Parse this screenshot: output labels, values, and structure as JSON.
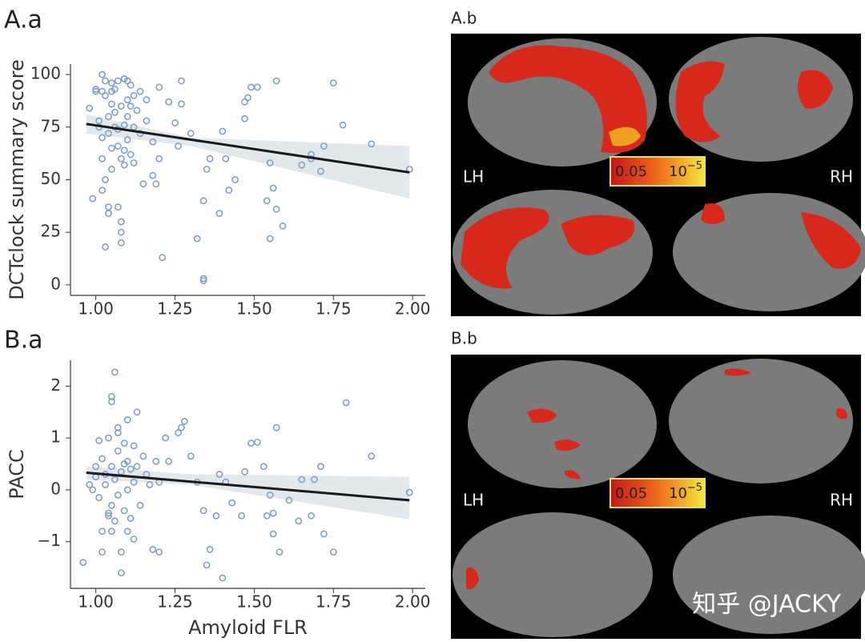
{
  "chart_data": [
    {
      "type": "scatter",
      "panel_label": "A.a",
      "ylabel": "DCTclock summary score",
      "marker_color": "#7f9fc8",
      "fit_color": "#1a1a1a",
      "ci_color": "#dde5ea",
      "x": [
        0.98,
        0.99,
        1.0,
        1.0,
        1.01,
        1.01,
        1.02,
        1.02,
        1.02,
        1.02,
        1.02,
        1.03,
        1.03,
        1.03,
        1.03,
        1.04,
        1.04,
        1.04,
        1.04,
        1.05,
        1.05,
        1.05,
        1.05,
        1.05,
        1.06,
        1.06,
        1.06,
        1.07,
        1.07,
        1.07,
        1.07,
        1.08,
        1.08,
        1.08,
        1.08,
        1.08,
        1.09,
        1.09,
        1.09,
        1.09,
        1.1,
        1.1,
        1.1,
        1.1,
        1.11,
        1.11,
        1.11,
        1.12,
        1.12,
        1.12,
        1.13,
        1.14,
        1.14,
        1.15,
        1.16,
        1.16,
        1.18,
        1.18,
        1.19,
        1.2,
        1.2,
        1.21,
        1.23,
        1.25,
        1.26,
        1.27,
        1.27,
        1.3,
        1.32,
        1.34,
        1.34,
        1.34,
        1.35,
        1.36,
        1.39,
        1.4,
        1.41,
        1.42,
        1.44,
        1.47,
        1.47,
        1.48,
        1.49,
        1.51,
        1.54,
        1.55,
        1.55,
        1.56,
        1.57,
        1.57,
        1.59,
        1.65,
        1.68,
        1.68,
        1.71,
        1.72,
        1.75,
        1.78,
        1.87,
        1.99
      ],
      "values": [
        84,
        41,
        93,
        92,
        78,
        75,
        100,
        92,
        70,
        60,
        45,
        18,
        97,
        90,
        50,
        37,
        34,
        80,
        72,
        96,
        92,
        86,
        65,
        55,
        75,
        82,
        93,
        97,
        74,
        66,
        37,
        25,
        20,
        30,
        85,
        60,
        98,
        76,
        64,
        57,
        97,
        88,
        80,
        69,
        95,
        85,
        62,
        90,
        75,
        58,
        83,
        92,
        72,
        48,
        88,
        78,
        68,
        52,
        48,
        60,
        94,
        13,
        87,
        77,
        66,
        97,
        86,
        72,
        22,
        3,
        2,
        40,
        55,
        60,
        34,
        73,
        60,
        45,
        50,
        79,
        87,
        89,
        94,
        94,
        40,
        22,
        58,
        46,
        97,
        36,
        28,
        57,
        60,
        62,
        54,
        66,
        96,
        76,
        67,
        55
      ],
      "fit": {
        "x": [
          0.97,
          1.99
        ],
        "values": [
          76.5,
          53.5
        ]
      },
      "ci": {
        "x": [
          0.97,
          1.3,
          1.99
        ],
        "lower": [
          72,
          66,
          41
        ],
        "upper": [
          81,
          70,
          66
        ]
      },
      "xlim": [
        0.92,
        2.04
      ],
      "ylim": [
        -5,
        105
      ],
      "xticks": [
        {
          "value": 1,
          "label": "1.00"
        },
        1.25,
        {
          "value": 1.5,
          "label": "1.50"
        },
        1.75,
        {
          "value": 2,
          "label": "2.00"
        }
      ],
      "yticks": [
        0,
        25,
        50,
        75,
        100
      ]
    },
    {
      "type": "scatter",
      "panel_label": "B.a",
      "ylabel": "PACC",
      "xlabel": "Amyloid FLR",
      "marker_color": "#7f9fc8",
      "fit_color": "#1a1a1a",
      "ci_color": "#dde5ea",
      "x": [
        0.96,
        0.98,
        0.99,
        1.0,
        1.0,
        1.01,
        1.01,
        1.02,
        1.02,
        1.02,
        1.03,
        1.03,
        1.04,
        1.04,
        1.04,
        1.05,
        1.05,
        1.05,
        1.05,
        1.05,
        1.06,
        1.06,
        1.06,
        1.07,
        1.07,
        1.07,
        1.07,
        1.08,
        1.08,
        1.08,
        1.09,
        1.09,
        1.09,
        1.1,
        1.1,
        1.1,
        1.1,
        1.11,
        1.11,
        1.12,
        1.12,
        1.12,
        1.13,
        1.13,
        1.14,
        1.15,
        1.16,
        1.17,
        1.18,
        1.19,
        1.2,
        1.2,
        1.22,
        1.23,
        1.26,
        1.27,
        1.28,
        1.3,
        1.32,
        1.34,
        1.35,
        1.36,
        1.38,
        1.39,
        1.4,
        1.41,
        1.43,
        1.46,
        1.47,
        1.49,
        1.51,
        1.53,
        1.54,
        1.55,
        1.56,
        1.56,
        1.57,
        1.58,
        1.61,
        1.64,
        1.65,
        1.68,
        1.69,
        1.71,
        1.72,
        1.75,
        1.79,
        1.87,
        1.99
      ],
      "values": [
        -1.4,
        0.1,
        0,
        0.45,
        0.25,
        0.95,
        -0.15,
        -1.2,
        -0.8,
        0.6,
        0.3,
        0.1,
        -0.45,
        -0.5,
        1.0,
        1.7,
        1.8,
        0.45,
        -0.3,
        -0.8,
        2.27,
        0.2,
        -0.6,
        1.2,
        1.1,
        0.75,
        -0.1,
        -1.6,
        0.35,
        -1.2,
        0.9,
        0.5,
        -0.4,
        1.35,
        0.55,
        0,
        -0.8,
        0.4,
        -0.55,
        0.85,
        0.15,
        -0.95,
        1.5,
        0.45,
        -0.3,
        0.65,
        0.3,
        0.1,
        -1.15,
        0.55,
        0.15,
        -1.2,
        1.0,
        0.55,
        1.1,
        1.2,
        1.32,
        0.65,
        0.15,
        -0.4,
        -1.45,
        -1.15,
        -0.5,
        0.3,
        -1.7,
        0.15,
        -0.25,
        -0.5,
        0.35,
        0.9,
        0.92,
        0.45,
        -0.5,
        -0.1,
        -0.85,
        -0.45,
        1.2,
        -1.2,
        -0.2,
        -0.6,
        0.2,
        -0.5,
        0.2,
        0.45,
        -0.85,
        -1.2,
        1.68,
        0.65,
        -0.05
      ],
      "fit": {
        "x": [
          0.97,
          1.99
        ],
        "values": [
          0.33,
          -0.2
        ]
      },
      "ci": {
        "x": [
          0.97,
          1.3,
          1.99
        ],
        "lower": [
          0.2,
          0.1,
          -0.57
        ],
        "upper": [
          0.45,
          0.3,
          0.25
        ]
      },
      "xlim": [
        0.92,
        2.04
      ],
      "ylim": [
        -1.9,
        2.5
      ],
      "xticks": [
        {
          "value": 1,
          "label": "1.00"
        },
        1.25,
        {
          "value": 1.5,
          "label": "1.50"
        },
        1.75,
        {
          "value": 2,
          "label": "2.00"
        }
      ],
      "yticks": [
        {
          "value": -1,
          "label": "−1"
        },
        0,
        1,
        2
      ]
    }
  ],
  "panels": [
    {
      "label": "A.b",
      "left": "LH",
      "right": "RH",
      "colorbar": {
        "low": "0.05",
        "high": "10",
        "exponent": "−5"
      }
    },
    {
      "label": "B.b",
      "left": "LH",
      "right": "RH",
      "colorbar": {
        "low": "0.05",
        "high": "10",
        "exponent": "−5"
      }
    }
  ],
  "watermark": "知乎 @JACKY"
}
